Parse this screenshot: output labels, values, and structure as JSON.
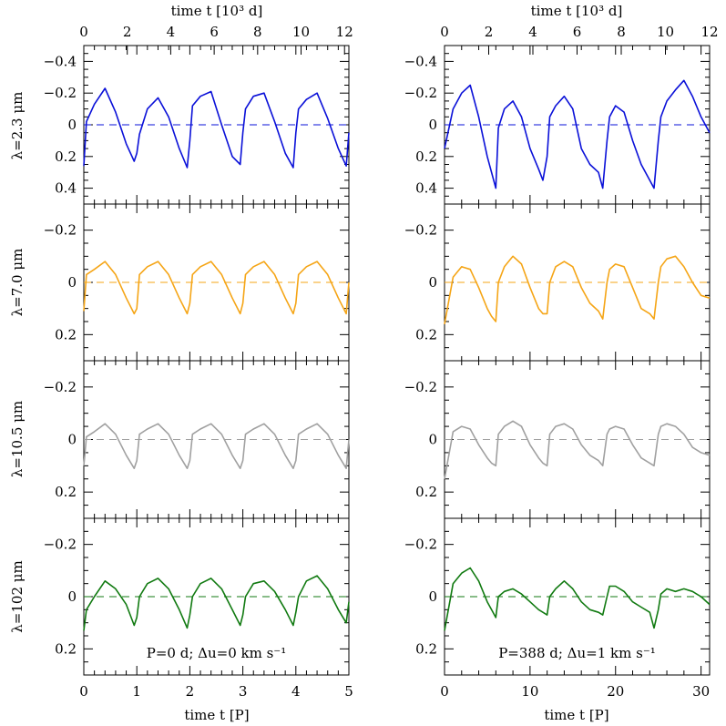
{
  "figure": {
    "top_axis_label": "time  t  [10³ d]",
    "bottom_axis_label": "time  t  [P]",
    "colors": {
      "row0": "#0a10d8",
      "row1": "#f5a516",
      "row2": "#a0a0a0",
      "row3": "#117a11",
      "frame": "#000000"
    }
  },
  "chart_data": [
    {
      "type": "line",
      "panel": "left-row1",
      "ylabel": "λ=2.3 μm",
      "ylim": [
        0.5,
        -0.5
      ],
      "yticks": [
        "−0.4",
        "−0.2",
        "0",
        "0.2",
        "0.4"
      ],
      "xlim": [
        0,
        5
      ],
      "top_xlim": [
        0,
        12.2
      ],
      "top_ticks": [
        "0",
        "2",
        "4",
        "6",
        "8",
        "10",
        "12"
      ],
      "reference_line": 0,
      "series": [
        {
          "name": "λ=2.3 μm",
          "x": [
            0,
            0.05,
            0.2,
            0.4,
            0.6,
            0.8,
            0.95,
            1.0,
            1.05,
            1.2,
            1.4,
            1.6,
            1.8,
            1.95,
            2.0,
            2.05,
            2.2,
            2.4,
            2.6,
            2.8,
            2.95,
            3.0,
            3.05,
            3.2,
            3.4,
            3.6,
            3.8,
            3.95,
            4.0,
            4.05,
            4.2,
            4.4,
            4.6,
            4.8,
            4.95,
            5.0
          ],
          "y": [
            0.26,
            -0.02,
            -0.13,
            -0.23,
            -0.08,
            0.12,
            0.23,
            0.18,
            0.06,
            -0.1,
            -0.17,
            -0.05,
            0.15,
            0.27,
            0.1,
            -0.12,
            -0.18,
            -0.21,
            0.0,
            0.2,
            0.25,
            0.05,
            -0.1,
            -0.18,
            -0.2,
            -0.02,
            0.18,
            0.27,
            0.05,
            -0.1,
            -0.16,
            -0.2,
            -0.04,
            0.15,
            0.26,
            0.05
          ]
        }
      ]
    },
    {
      "type": "line",
      "panel": "left-row2",
      "ylabel": "λ=7.0 μm",
      "ylim": [
        0.3,
        -0.3
      ],
      "yticks": [
        "−0.2",
        "0",
        "0.2"
      ],
      "xlim": [
        0,
        5
      ],
      "reference_line": 0,
      "series": [
        {
          "name": "λ=7.0 μm",
          "x": [
            0,
            0.05,
            0.2,
            0.4,
            0.6,
            0.8,
            0.95,
            1.0,
            1.05,
            1.2,
            1.4,
            1.6,
            1.8,
            1.95,
            2.0,
            2.05,
            2.2,
            2.4,
            2.6,
            2.8,
            2.95,
            3.0,
            3.05,
            3.2,
            3.4,
            3.6,
            3.8,
            3.95,
            4.0,
            4.05,
            4.2,
            4.4,
            4.6,
            4.8,
            4.95,
            5.0
          ],
          "y": [
            0.11,
            -0.03,
            -0.05,
            -0.08,
            -0.03,
            0.06,
            0.12,
            0.1,
            -0.03,
            -0.06,
            -0.08,
            -0.03,
            0.06,
            0.12,
            0.08,
            -0.03,
            -0.06,
            -0.08,
            -0.03,
            0.06,
            0.12,
            0.08,
            -0.03,
            -0.06,
            -0.08,
            -0.03,
            0.06,
            0.12,
            0.08,
            -0.03,
            -0.06,
            -0.08,
            -0.03,
            0.06,
            0.12,
            0.0
          ]
        }
      ]
    },
    {
      "type": "line",
      "panel": "left-row3",
      "ylabel": "λ=10.5 μm",
      "ylim": [
        0.3,
        -0.3
      ],
      "yticks": [
        "−0.2",
        "0",
        "0.2"
      ],
      "xlim": [
        0,
        5
      ],
      "reference_line": 0,
      "series": [
        {
          "name": "λ=10.5 μm",
          "x": [
            0,
            0.05,
            0.2,
            0.4,
            0.6,
            0.8,
            0.95,
            1.0,
            1.05,
            1.2,
            1.4,
            1.6,
            1.8,
            1.95,
            2.0,
            2.05,
            2.2,
            2.4,
            2.6,
            2.8,
            2.95,
            3.0,
            3.05,
            3.2,
            3.4,
            3.6,
            3.8,
            3.95,
            4.0,
            4.05,
            4.2,
            4.4,
            4.6,
            4.8,
            4.95,
            5.0
          ],
          "y": [
            0.1,
            -0.01,
            -0.03,
            -0.06,
            -0.02,
            0.06,
            0.11,
            0.08,
            -0.02,
            -0.04,
            -0.06,
            -0.02,
            0.06,
            0.11,
            0.08,
            -0.02,
            -0.04,
            -0.06,
            -0.02,
            0.06,
            0.11,
            0.08,
            -0.02,
            -0.04,
            -0.06,
            -0.02,
            0.06,
            0.11,
            0.08,
            -0.02,
            -0.04,
            -0.06,
            -0.02,
            0.06,
            0.11,
            0.0
          ]
        }
      ]
    },
    {
      "type": "line",
      "panel": "left-row4",
      "ylabel": "λ=102 μm",
      "ylim": [
        0.3,
        -0.3
      ],
      "yticks": [
        "−0.2",
        "0",
        "0.2"
      ],
      "xlim": [
        0,
        5
      ],
      "reference_line": 0,
      "annotation": "P=0 d;  Δu=0 km s⁻¹",
      "xticks": [
        "0",
        "1",
        "2",
        "3",
        "4",
        "5"
      ],
      "series": [
        {
          "name": "λ=102 μm",
          "x": [
            0,
            0.05,
            0.2,
            0.4,
            0.6,
            0.8,
            0.95,
            1.0,
            1.05,
            1.2,
            1.4,
            1.6,
            1.8,
            1.95,
            2.0,
            2.05,
            2.2,
            2.4,
            2.6,
            2.8,
            2.95,
            3.0,
            3.05,
            3.2,
            3.4,
            3.6,
            3.8,
            3.95,
            4.0,
            4.05,
            4.2,
            4.4,
            4.6,
            4.8,
            4.95,
            5.0
          ],
          "y": [
            0.13,
            0.05,
            0.0,
            -0.06,
            -0.03,
            0.03,
            0.11,
            0.08,
            0.0,
            -0.05,
            -0.07,
            -0.03,
            0.05,
            0.12,
            0.07,
            0.0,
            -0.05,
            -0.07,
            -0.03,
            0.05,
            0.11,
            0.07,
            0.0,
            -0.05,
            -0.06,
            -0.02,
            0.05,
            0.11,
            0.06,
            0.0,
            -0.06,
            -0.08,
            -0.03,
            0.05,
            0.1,
            0.02
          ]
        }
      ]
    },
    {
      "type": "line",
      "panel": "right-row1",
      "ylim": [
        0.5,
        -0.5
      ],
      "yticks": [
        "−0.4",
        "−0.2",
        "0",
        "0.2",
        "0.4"
      ],
      "xlim": [
        0,
        31
      ],
      "top_xlim": [
        0,
        12.0
      ],
      "top_ticks": [
        "0",
        "2",
        "4",
        "6",
        "8",
        "10",
        "12"
      ],
      "reference_line": 0,
      "series": [
        {
          "name": "λ=2.3 μm",
          "x": [
            0,
            1,
            2,
            3,
            4,
            5,
            5.5,
            6,
            6.3,
            7,
            8,
            9,
            10,
            11,
            11.5,
            12,
            12.3,
            13,
            14,
            15,
            16,
            17,
            18,
            18.5,
            19,
            19.3,
            20,
            21,
            22,
            23,
            24,
            24.5,
            25,
            25.3,
            26,
            27,
            28,
            29,
            30,
            31
          ],
          "y": [
            0.15,
            -0.1,
            -0.2,
            -0.25,
            -0.05,
            0.2,
            0.3,
            0.4,
            0.02,
            -0.1,
            -0.15,
            -0.05,
            0.15,
            0.28,
            0.35,
            0.2,
            -0.05,
            -0.12,
            -0.18,
            -0.1,
            0.15,
            0.25,
            0.3,
            0.4,
            0.1,
            -0.05,
            -0.12,
            -0.08,
            0.1,
            0.25,
            0.35,
            0.4,
            0.1,
            -0.05,
            -0.15,
            -0.22,
            -0.28,
            -0.18,
            -0.05,
            0.05
          ]
        }
      ]
    },
    {
      "type": "line",
      "panel": "right-row2",
      "ylim": [
        0.3,
        -0.3
      ],
      "yticks": [
        "−0.2",
        "0",
        "0.2"
      ],
      "xlim": [
        0,
        31
      ],
      "reference_line": 0,
      "series": [
        {
          "name": "λ=7.0 μm",
          "x": [
            0,
            1,
            2,
            3,
            4,
            5,
            5.5,
            6,
            6.3,
            7,
            8,
            9,
            10,
            11,
            11.5,
            12,
            12.3,
            13,
            14,
            15,
            16,
            17,
            18,
            18.5,
            19,
            19.3,
            20,
            21,
            22,
            23,
            24,
            24.5,
            25,
            25.3,
            26,
            27,
            28,
            29,
            30,
            31
          ],
          "y": [
            0.16,
            -0.02,
            -0.06,
            -0.05,
            0.02,
            0.1,
            0.13,
            0.15,
            0.0,
            -0.06,
            -0.1,
            -0.07,
            0.02,
            0.1,
            0.12,
            0.12,
            0.0,
            -0.06,
            -0.08,
            -0.06,
            0.02,
            0.08,
            0.11,
            0.14,
            0.0,
            -0.05,
            -0.07,
            -0.06,
            0.02,
            0.1,
            0.12,
            0.14,
            0.0,
            -0.06,
            -0.09,
            -0.1,
            -0.06,
            0.0,
            0.05,
            0.06
          ]
        }
      ]
    },
    {
      "type": "line",
      "panel": "right-row3",
      "ylim": [
        0.3,
        -0.3
      ],
      "yticks": [
        "−0.2",
        "0",
        "0.2"
      ],
      "xlim": [
        0,
        31
      ],
      "reference_line": 0,
      "series": [
        {
          "name": "λ=10.5 μm",
          "x": [
            0,
            1,
            2,
            3,
            4,
            5,
            5.5,
            6,
            6.3,
            7,
            8,
            9,
            10,
            11,
            11.5,
            12,
            12.3,
            13,
            14,
            15,
            16,
            17,
            18,
            18.5,
            19,
            19.3,
            20,
            21,
            22,
            23,
            24,
            24.5,
            25,
            25.3,
            26,
            27,
            28,
            29,
            30,
            31
          ],
          "y": [
            0.15,
            -0.03,
            -0.05,
            -0.04,
            0.02,
            0.07,
            0.09,
            0.1,
            -0.02,
            -0.05,
            -0.07,
            -0.05,
            0.02,
            0.07,
            0.09,
            0.1,
            -0.02,
            -0.05,
            -0.06,
            -0.04,
            0.02,
            0.06,
            0.08,
            0.1,
            -0.02,
            -0.04,
            -0.05,
            -0.04,
            0.02,
            0.07,
            0.09,
            0.1,
            -0.02,
            -0.05,
            -0.06,
            -0.05,
            -0.02,
            0.03,
            0.05,
            0.06
          ]
        }
      ]
    },
    {
      "type": "line",
      "panel": "right-row4",
      "ylim": [
        0.3,
        -0.3
      ],
      "yticks": [
        "−0.2",
        "0",
        "0.2"
      ],
      "xlim": [
        0,
        31
      ],
      "reference_line": 0,
      "annotation": "P=388 d;  Δu=1 km s⁻¹",
      "xticks": [
        "0",
        "10",
        "20",
        "30"
      ],
      "series": [
        {
          "name": "λ=102 μm",
          "x": [
            0,
            1,
            2,
            3,
            4,
            5,
            5.5,
            6,
            6.3,
            7,
            8,
            9,
            10,
            11,
            11.5,
            12,
            12.3,
            13,
            14,
            15,
            16,
            17,
            18,
            18.5,
            19,
            19.3,
            20,
            21,
            22,
            23,
            24,
            24.5,
            25,
            25.3,
            26,
            27,
            28,
            29,
            30,
            31
          ],
          "y": [
            0.13,
            -0.05,
            -0.09,
            -0.11,
            -0.06,
            0.02,
            0.05,
            0.08,
            0.0,
            -0.02,
            -0.03,
            -0.01,
            0.02,
            0.05,
            0.06,
            0.07,
            0.0,
            -0.03,
            -0.06,
            -0.03,
            0.02,
            0.05,
            0.06,
            0.07,
            0.0,
            -0.04,
            -0.04,
            -0.02,
            0.02,
            0.04,
            0.06,
            0.12,
            0.05,
            -0.01,
            -0.03,
            -0.02,
            -0.03,
            -0.02,
            0.0,
            0.03
          ]
        }
      ]
    }
  ]
}
